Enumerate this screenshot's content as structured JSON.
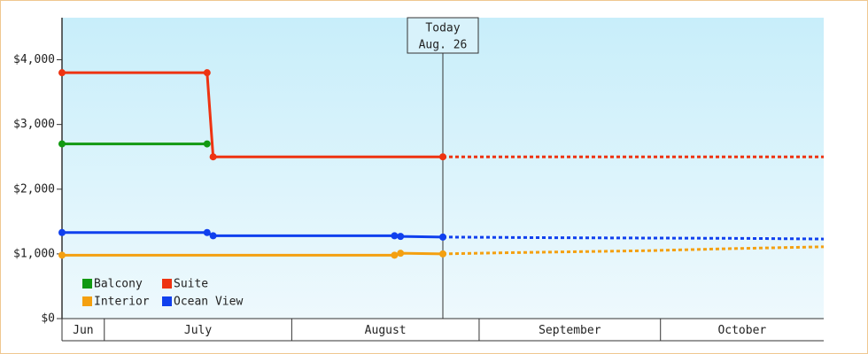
{
  "chart_data": {
    "type": "line",
    "xlim": [
      -7,
      119
    ],
    "ylim": [
      0,
      4650
    ],
    "yticks": [
      {
        "value": 0,
        "label": "$0"
      },
      {
        "value": 1000,
        "label": "$1,000"
      },
      {
        "value": 2000,
        "label": "$2,000"
      },
      {
        "value": 3000,
        "label": "$3,000"
      },
      {
        "value": 4000,
        "label": "$4,000"
      }
    ],
    "month_bands": [
      {
        "label": "Jun",
        "start": -7,
        "end": 0
      },
      {
        "label": "July",
        "start": 0,
        "end": 31
      },
      {
        "label": "August",
        "start": 31,
        "end": 62
      },
      {
        "label": "September",
        "start": 62,
        "end": 92
      },
      {
        "label": "October",
        "start": 92,
        "end": 119
      }
    ],
    "today": {
      "title": "Today",
      "date": "Aug. 26",
      "x": 56
    },
    "legend_position": "lower left",
    "series": [
      {
        "name": "Balcony",
        "color": "#119911",
        "x": [
          -7,
          17
        ],
        "values": [
          2700,
          2700
        ]
      },
      {
        "name": "Suite",
        "color": "#ee3311",
        "x": [
          -7,
          17,
          18,
          56
        ],
        "values": [
          3800,
          3800,
          2500,
          2500
        ],
        "forecast": {
          "x": [
            56,
            119
          ],
          "values": [
            2500,
            2500
          ]
        }
      },
      {
        "name": "Interior",
        "color": "#f4a010",
        "x": [
          -7,
          48,
          49,
          56
        ],
        "values": [
          980,
          980,
          1010,
          1000
        ],
        "forecast": {
          "x": [
            56,
            68,
            90,
            103,
            119
          ],
          "values": [
            1000,
            1020,
            1050,
            1080,
            1110
          ]
        }
      },
      {
        "name": "Ocean View",
        "color": "#1040ee",
        "x": [
          -7,
          17,
          18,
          48,
          49,
          56
        ],
        "values": [
          1330,
          1330,
          1280,
          1280,
          1270,
          1260
        ],
        "forecast": {
          "x": [
            56,
            74,
            105,
            119
          ],
          "values": [
            1260,
            1250,
            1240,
            1230
          ]
        }
      }
    ]
  }
}
